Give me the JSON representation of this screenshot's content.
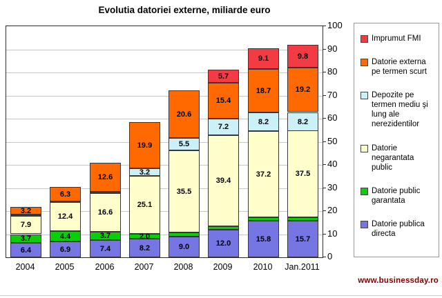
{
  "footer": {
    "website": "www.businessday.ro"
  },
  "axes": {
    "y_side": "right",
    "yticks": [
      0,
      10,
      20,
      30,
      40,
      50,
      60,
      70,
      80,
      90,
      100
    ]
  },
  "legend": {
    "items": [
      {
        "key": "imprumut-fmi",
        "label": "Imprumut FMI",
        "color": "#f23b43"
      },
      {
        "key": "datorie-externa-termen-scurt",
        "label": "Datorie externa pe termen scurt",
        "color": "#ff6900"
      },
      {
        "key": "depozite-nerezidenti",
        "label": "Depozite pe termen mediu şi lung ale nerezidentilor",
        "color": "#ccf0f8"
      },
      {
        "key": "datorie-negarantata-public",
        "label": "Datorie negarantata public",
        "color": "#ffffcc"
      },
      {
        "key": "datorie-public-garantata",
        "label": "Datorie public garantata",
        "color": "#0bce0b"
      },
      {
        "key": "datorie-publica-directa",
        "label": "Datorie publica directa",
        "color": "#7575e4"
      }
    ]
  },
  "chart_data": {
    "type": "bar",
    "stacked": true,
    "title": "Evolutia datoriei externe, miliarde euro",
    "xlabel": "",
    "ylabel": "",
    "ylim": [
      0,
      100
    ],
    "ytick_interval": 10,
    "grid": true,
    "legend_position": "right",
    "categories": [
      "2004",
      "2005",
      "2006",
      "2007",
      "2008",
      "2009",
      "2010",
      "Jan.2011"
    ],
    "series": [
      {
        "key": "datorie-publica-directa",
        "name": "Datorie publica directa",
        "color": "#7575e4",
        "values": [
          6.4,
          6.9,
          7.4,
          8.2,
          9.0,
          12.0,
          15.8,
          15.7
        ],
        "labels": [
          "6.4",
          "6.9",
          "7.4",
          "8.2",
          "9.0",
          "12.0",
          "15.8",
          "15.7"
        ]
      },
      {
        "key": "datorie-public-garantata",
        "name": "Datorie public garantata",
        "color": "#0bce0b",
        "values": [
          3.7,
          4.4,
          3.7,
          2.0,
          1.7,
          1.4,
          1.5,
          1.5
        ],
        "labels": [
          "3.7",
          "4.4",
          "3.7",
          "2.0",
          null,
          null,
          null,
          null
        ]
      },
      {
        "key": "datorie-negarantata-public",
        "name": "Datorie negarantata public",
        "color": "#ffffcc",
        "values": [
          7.9,
          12.4,
          16.6,
          25.1,
          35.5,
          39.4,
          37.2,
          37.5
        ],
        "labels": [
          "7.9",
          "12.4",
          "16.6",
          "25.1",
          "35.5",
          "39.4",
          "37.2",
          "37.5"
        ]
      },
      {
        "key": "depozite-nerezidenti",
        "name": "Depozite pe termen mediu şi lung ale nerezidentilor",
        "color": "#ccf0f8",
        "values": [
          0.4,
          0.5,
          0.6,
          3.2,
          5.5,
          7.2,
          8.2,
          8.2
        ],
        "labels": [
          null,
          null,
          null,
          "3.2",
          "5.5",
          "7.2",
          "8.2",
          "8.2"
        ]
      },
      {
        "key": "datorie-externa-termen-scurt",
        "name": "Datorie externa pe termen scurt",
        "color": "#ff6900",
        "values": [
          3.2,
          6.3,
          12.6,
          19.9,
          20.6,
          15.4,
          18.7,
          19.2
        ],
        "labels": [
          "3.2",
          "6.3",
          "12.6",
          "19.9",
          "20.6",
          "15.4",
          "18.7",
          "19.2"
        ]
      },
      {
        "key": "imprumut-fmi",
        "name": "Imprumut FMI",
        "color": "#f23b43",
        "values": [
          0,
          0,
          0,
          0,
          0,
          5.7,
          9.1,
          9.8
        ],
        "labels": [
          null,
          null,
          null,
          null,
          null,
          "5.7",
          "9.1",
          "9.8"
        ]
      }
    ]
  }
}
